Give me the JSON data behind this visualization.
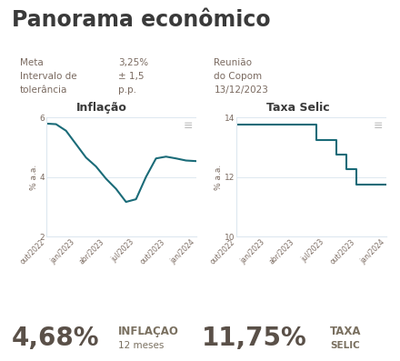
{
  "title": "Panorama econômico",
  "title_color": "#3a3a3a",
  "background_color": "#ffffff",
  "info_color": "#7a6a60",
  "inflacao_title": "Inflação",
  "selic_title": "Taxa Selic",
  "inflacao_x": [
    0,
    1,
    2,
    3,
    4,
    5,
    6,
    7,
    8,
    9,
    10,
    11,
    12,
    13,
    14,
    15
  ],
  "inflacao_y": [
    5.79,
    5.77,
    5.55,
    5.1,
    4.65,
    4.35,
    3.94,
    3.6,
    3.16,
    3.25,
    4.0,
    4.62,
    4.68,
    4.62,
    4.55,
    4.53
  ],
  "inflacao_ylim": [
    2,
    6
  ],
  "inflacao_yticks": [
    2,
    4,
    6
  ],
  "inflacao_ylabel": "% a.a.",
  "inflacao_xtick_labels": [
    "out/2022",
    "jan/2023",
    "abr/2023",
    "jul/2023",
    "out/2023",
    "jan/2024"
  ],
  "selic_x": [
    0,
    1,
    2,
    3,
    4,
    5,
    6,
    7,
    8,
    9,
    10,
    11,
    12,
    13,
    14,
    15
  ],
  "selic_y": [
    13.75,
    13.75,
    13.75,
    13.75,
    13.75,
    13.75,
    13.75,
    13.75,
    13.25,
    13.25,
    12.75,
    12.25,
    11.75,
    11.75,
    11.75,
    11.75
  ],
  "selic_ylim": [
    10,
    14
  ],
  "selic_yticks": [
    10,
    12,
    14
  ],
  "selic_ylabel": "% a.a.",
  "selic_xtick_labels": [
    "out/2022",
    "jan/2023",
    "abr/2023",
    "jul/2023",
    "out/2023",
    "jan/2024"
  ],
  "line_color": "#1a6b78",
  "line_width": 1.5,
  "grid_color": "#dde8f0",
  "inflacao_big": "4,68%",
  "inflacao_label1": "INFLAÇAO",
  "inflacao_label2": "12 meses",
  "selic_big": "11,75%",
  "selic_label1": "TAXA",
  "selic_label2": "SELIC",
  "big_fontsize": 20,
  "small_label1_fontsize": 8.5,
  "small_label2_fontsize": 7.5,
  "big_color": "#5a5048",
  "small_color": "#7a7060",
  "title_fontsize": 17,
  "info_fontsize": 7.5,
  "chart_title_fontsize": 9
}
